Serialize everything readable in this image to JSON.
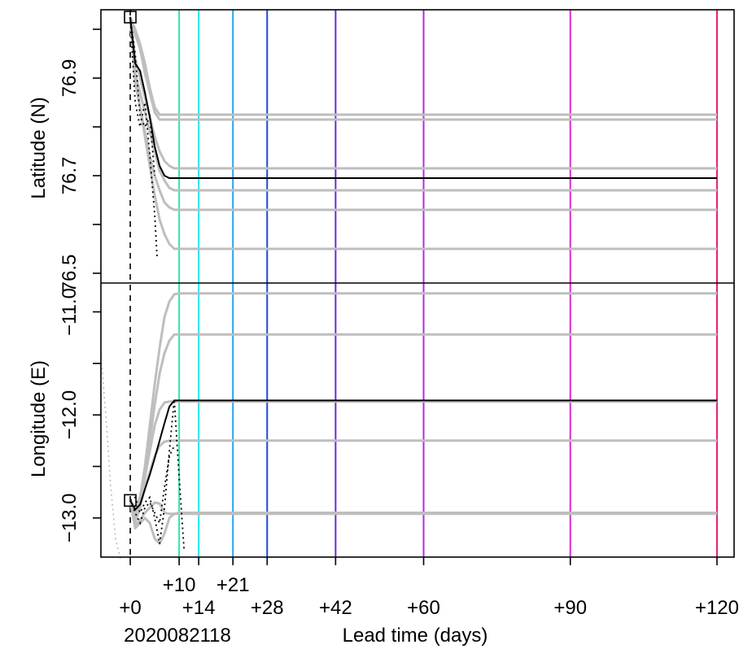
{
  "chart_data": [
    {
      "type": "line",
      "panel": "top",
      "ylabel": "Latitude (N)",
      "yticks": [
        76.5,
        76.6,
        76.7,
        76.8,
        76.9,
        77.0
      ],
      "ytick_labels": [
        "76.5",
        "",
        "76.7",
        "",
        "76.9",
        ""
      ],
      "ylim": [
        76.48,
        77.04
      ],
      "marker": {
        "x": 0,
        "y": 77.025,
        "shape": "square"
      },
      "main_track": {
        "x": [
          0,
          1,
          2,
          3,
          4,
          5,
          6,
          7,
          8,
          9,
          10,
          120
        ],
        "y": [
          77.025,
          76.93,
          76.915,
          76.87,
          76.82,
          76.76,
          76.72,
          76.7,
          76.695,
          76.695,
          76.695,
          76.695
        ]
      },
      "ensemble_tracks": [
        {
          "x": [
            0,
            1,
            2,
            3,
            4,
            5,
            6,
            7,
            120
          ],
          "y": [
            77.025,
            77.0,
            76.97,
            76.93,
            76.88,
            76.84,
            76.825,
            76.825,
            76.825
          ]
        },
        {
          "x": [
            0,
            1,
            2,
            3,
            4,
            5,
            6,
            7,
            120
          ],
          "y": [
            77.025,
            76.99,
            76.96,
            76.91,
            76.87,
            76.83,
            76.815,
            76.815,
            76.815
          ]
        },
        {
          "x": [
            0,
            1,
            2,
            3,
            4,
            5,
            6,
            7,
            8,
            9,
            10,
            120
          ],
          "y": [
            77.025,
            76.94,
            76.9,
            76.86,
            76.82,
            76.78,
            76.75,
            76.73,
            76.72,
            76.715,
            76.715,
            76.715
          ]
        },
        {
          "x": [
            0,
            1,
            2,
            3,
            4,
            5,
            6,
            7,
            8,
            9,
            10,
            120
          ],
          "y": [
            77.025,
            76.91,
            76.87,
            76.83,
            76.79,
            76.75,
            76.71,
            76.69,
            76.675,
            76.67,
            76.67,
            76.67
          ]
        },
        {
          "x": [
            0,
            1,
            2,
            3,
            4,
            5,
            6,
            7,
            8,
            9,
            10,
            120
          ],
          "y": [
            77.025,
            76.89,
            76.84,
            76.79,
            76.74,
            76.7,
            76.67,
            76.645,
            76.635,
            76.63,
            76.63,
            76.63
          ]
        },
        {
          "x": [
            0,
            1,
            2,
            3,
            4,
            5,
            6,
            7,
            8,
            9,
            10,
            120
          ],
          "y": [
            77.025,
            76.9,
            76.84,
            76.78,
            76.72,
            76.66,
            76.61,
            76.58,
            76.56,
            76.55,
            76.55,
            76.55
          ]
        }
      ],
      "dotted_tracks": [
        {
          "x": [
            0,
            1,
            2,
            3,
            4,
            5,
            5.5
          ],
          "y": [
            77.025,
            76.85,
            76.8,
            76.85,
            76.74,
            76.62,
            76.53
          ]
        },
        {
          "x": [
            0,
            1,
            2,
            3,
            4,
            5
          ],
          "y": [
            77.025,
            76.95,
            76.82,
            76.8,
            76.82,
            76.7
          ]
        }
      ],
      "ensemble_color": "#bebebe",
      "main_color": "#000000"
    },
    {
      "type": "line",
      "panel": "bottom",
      "ylabel": "Longitude (E)",
      "yticks": [
        -13.0,
        -12.5,
        -12.0,
        -11.5,
        -11.0
      ],
      "ytick_labels": [
        "−13.0",
        "",
        "−12.0",
        "",
        "−11.0"
      ],
      "ylim": [
        -13.38,
        -10.72
      ],
      "marker": {
        "x": 0,
        "y": -12.83,
        "shape": "square"
      },
      "main_track": {
        "x": [
          0,
          1,
          2,
          3,
          4,
          5,
          6,
          7,
          8,
          9,
          10,
          120
        ],
        "y": [
          -12.83,
          -12.92,
          -12.87,
          -12.72,
          -12.58,
          -12.42,
          -12.25,
          -12.08,
          -11.92,
          -11.86,
          -11.86,
          -11.86
        ]
      },
      "ensemble_tracks": [
        {
          "x": [
            0,
            1,
            2,
            3,
            4,
            5,
            6,
            7,
            8,
            9,
            10,
            120
          ],
          "y": [
            -12.83,
            -12.95,
            -12.8,
            -12.5,
            -12.1,
            -11.7,
            -11.35,
            -11.05,
            -10.9,
            -10.83,
            -10.82,
            -10.82
          ]
        },
        {
          "x": [
            0,
            1,
            2,
            3,
            4,
            5,
            6,
            7,
            8,
            9,
            10,
            120
          ],
          "y": [
            -12.83,
            -13.0,
            -12.85,
            -12.6,
            -12.25,
            -11.9,
            -11.6,
            -11.4,
            -11.28,
            -11.22,
            -11.22,
            -11.22
          ]
        },
        {
          "x": [
            0,
            1,
            2,
            3,
            4,
            5,
            6,
            7,
            8,
            9,
            10,
            120
          ],
          "y": [
            -12.83,
            -12.9,
            -12.8,
            -12.6,
            -12.35,
            -12.1,
            -11.95,
            -11.88,
            -11.87,
            -11.87,
            -11.87,
            -11.87
          ]
        },
        {
          "x": [
            0,
            1,
            2,
            3,
            4,
            5,
            6,
            7,
            8,
            9,
            10,
            120
          ],
          "y": [
            -12.83,
            -13.05,
            -12.9,
            -12.7,
            -12.55,
            -12.4,
            -12.3,
            -12.26,
            -12.25,
            -12.25,
            -12.25,
            -12.25
          ]
        },
        {
          "x": [
            0,
            1,
            2,
            3,
            4,
            5,
            6,
            7,
            8,
            9,
            10,
            120
          ],
          "y": [
            -12.83,
            -13.08,
            -13.02,
            -12.95,
            -12.9,
            -12.85,
            -12.86,
            -12.95,
            -12.96,
            -12.96,
            -12.96,
            -12.96
          ]
        },
        {
          "x": [
            0,
            1,
            2,
            3,
            4,
            5,
            6,
            7,
            8,
            9,
            10,
            120
          ],
          "y": [
            -12.83,
            -13.1,
            -13.05,
            -13.0,
            -13.05,
            -13.2,
            -13.25,
            -13.15,
            -13.0,
            -12.96,
            -12.95,
            -12.95
          ]
        }
      ],
      "dotted_tracks": [
        {
          "x": [
            0,
            1,
            2,
            3,
            4,
            5,
            6,
            7,
            8,
            9,
            10,
            11
          ],
          "y": [
            -12.83,
            -12.8,
            -12.95,
            -12.85,
            -12.8,
            -13.0,
            -13.25,
            -12.9,
            -12.35,
            -11.85,
            -12.6,
            -13.3
          ]
        },
        {
          "x": [
            0,
            1,
            2,
            3,
            4,
            5,
            6,
            7,
            8,
            9
          ],
          "y": [
            -12.83,
            -12.95,
            -13.05,
            -12.9,
            -12.85,
            -12.95,
            -13.05,
            -12.7,
            -12.4,
            -12.3
          ]
        }
      ],
      "far_dotted": {
        "x": [
          -6,
          -5,
          -4,
          -3,
          -2
        ],
        "y": [
          -11.4,
          -12.0,
          -12.7,
          -13.2,
          -13.4
        ]
      },
      "ensemble_color": "#bebebe",
      "main_color": "#000000"
    }
  ],
  "x_axis": {
    "xlabel": "Lead time (days)",
    "init_label": "2020082118",
    "xlim": [
      -6,
      123.5
    ],
    "ticks": [
      {
        "x": 0,
        "label": "+0",
        "row": 2
      },
      {
        "x": 10,
        "label": "+10",
        "row": 1
      },
      {
        "x": 14,
        "label": "+14",
        "row": 2
      },
      {
        "x": 21,
        "label": "+21",
        "row": 1
      },
      {
        "x": 28,
        "label": "+28",
        "row": 2
      },
      {
        "x": 42,
        "label": "+42",
        "row": 2
      },
      {
        "x": 60,
        "label": "+60",
        "row": 2
      },
      {
        "x": 90,
        "label": "+90",
        "row": 2
      },
      {
        "x": 120,
        "label": "+120",
        "row": 2
      }
    ]
  },
  "lead_lines": [
    {
      "x": 10,
      "color": "#2ee8a0"
    },
    {
      "x": 14,
      "color": "#22e6e6"
    },
    {
      "x": 21,
      "color": "#22a6f0"
    },
    {
      "x": 28,
      "color": "#1a48d8"
    },
    {
      "x": 42,
      "color": "#6a28d8"
    },
    {
      "x": 60,
      "color": "#b428e0"
    },
    {
      "x": 90,
      "color": "#e028d0"
    },
    {
      "x": 120,
      "color": "#e81e78"
    }
  ],
  "init_line": {
    "x": 0,
    "style": "dashed"
  }
}
